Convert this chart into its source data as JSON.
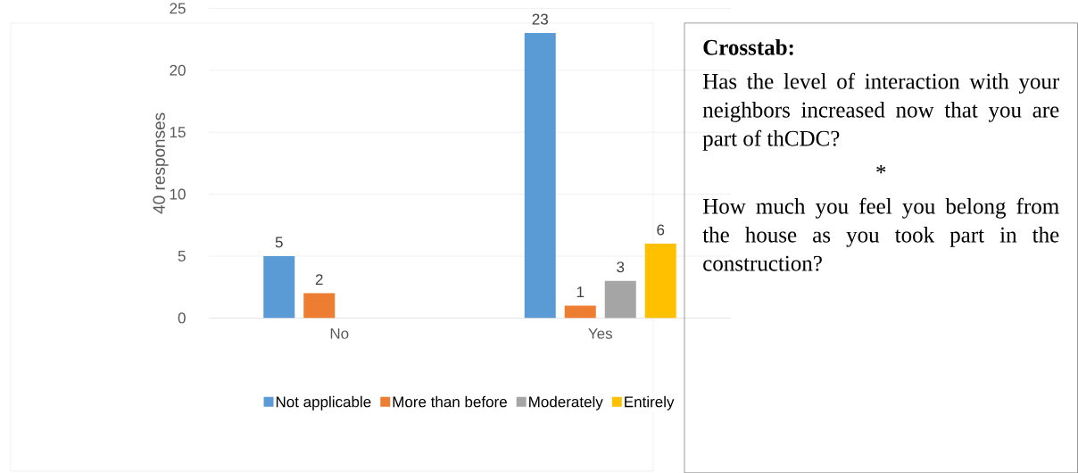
{
  "chart_data": [
    {
      "type": "bar",
      "categories": [
        "No",
        "Yes"
      ],
      "ylabel": "40 responses",
      "ylim": [
        0,
        25
      ],
      "yticks": [
        0,
        5,
        10,
        15,
        20,
        25
      ],
      "grid": "y",
      "legend": "bottom",
      "data_labels": true,
      "series": [
        {
          "name": "Not applicable",
          "color": "#5b9bd5",
          "values": [
            5,
            23
          ]
        },
        {
          "name": "More than before",
          "color": "#ed7d31",
          "values": [
            2,
            1
          ]
        },
        {
          "name": "Moderately",
          "color": "#a5a5a5",
          "values": [
            null,
            3
          ]
        },
        {
          "name": "Entirely",
          "color": "#ffc000",
          "values": [
            null,
            6
          ]
        }
      ]
    },
    {
      "type": "other",
      "title": "Crosstab:",
      "annotations": [
        "Has the level of interaction with your neighbors increased now that you are part of thCDC?",
        "*",
        "How much you feel you belong from the house as you took part in the construction?"
      ]
    }
  ]
}
